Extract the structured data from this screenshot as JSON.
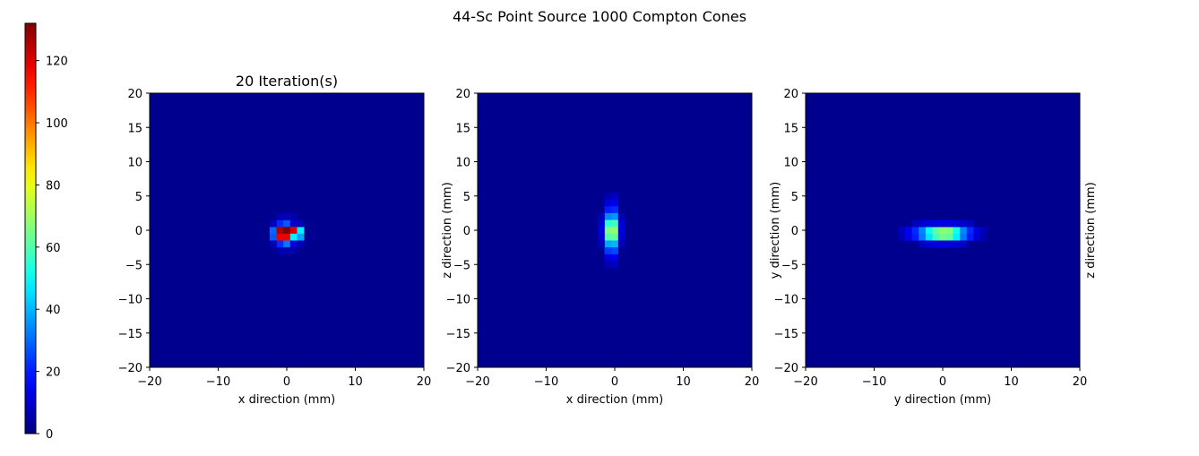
{
  "figure": {
    "title": "44-Sc Point Source 1000 Compton Cones"
  },
  "colorbar": {
    "colormap": "jet",
    "range": [
      0,
      132
    ],
    "ticks": [
      0,
      20,
      40,
      60,
      80,
      100,
      120
    ]
  },
  "chart_data": [
    {
      "type": "heatmap",
      "title": "20 Iteration(s)",
      "xlabel": "x direction (mm)",
      "ylabel": "",
      "xlim": [
        -20,
        20
      ],
      "ylim": [
        -20,
        20
      ],
      "xticks": [
        -20,
        -10,
        0,
        10,
        20
      ],
      "yticks": [
        -20,
        -15,
        -10,
        -5,
        0,
        5,
        10,
        15,
        20
      ],
      "cell_size_mm": 1,
      "background_value": 2,
      "cells": [
        {
          "x": -1,
          "y": 1,
          "v": 22
        },
        {
          "x": 0,
          "y": 1,
          "v": 28
        },
        {
          "x": 1,
          "y": 1,
          "v": 10
        },
        {
          "x": -2,
          "y": 0,
          "v": 30
        },
        {
          "x": -1,
          "y": 0,
          "v": 126
        },
        {
          "x": 0,
          "y": 0,
          "v": 132
        },
        {
          "x": 1,
          "y": 0,
          "v": 120
        },
        {
          "x": 2,
          "y": 0,
          "v": 48
        },
        {
          "x": -2,
          "y": -1,
          "v": 28
        },
        {
          "x": -1,
          "y": -1,
          "v": 118
        },
        {
          "x": 0,
          "y": -1,
          "v": 118
        },
        {
          "x": 1,
          "y": -1,
          "v": 48
        },
        {
          "x": 2,
          "y": -1,
          "v": 38
        },
        {
          "x": -1,
          "y": -2,
          "v": 22
        },
        {
          "x": 0,
          "y": -2,
          "v": 32
        },
        {
          "x": 1,
          "y": -2,
          "v": 12
        },
        {
          "x": -2,
          "y": 1,
          "v": 8
        },
        {
          "x": 2,
          "y": 1,
          "v": 8
        },
        {
          "x": -2,
          "y": -2,
          "v": 7
        },
        {
          "x": 2,
          "y": -2,
          "v": 7
        },
        {
          "x": -1,
          "y": 2,
          "v": 7
        },
        {
          "x": 0,
          "y": 2,
          "v": 7
        },
        {
          "x": 1,
          "y": 2,
          "v": 6
        },
        {
          "x": -1,
          "y": -3,
          "v": 6
        },
        {
          "x": 0,
          "y": -3,
          "v": 6
        },
        {
          "x": 1,
          "y": -3,
          "v": 5
        }
      ]
    },
    {
      "type": "heatmap",
      "title": "",
      "xlabel": "x direction (mm)",
      "ylabel": "z direction (mm)",
      "xlim": [
        -20,
        20
      ],
      "ylim": [
        -20,
        20
      ],
      "xticks": [
        -20,
        -10,
        0,
        10,
        20
      ],
      "yticks": [
        -20,
        -15,
        -10,
        -5,
        0,
        5,
        10,
        15,
        20
      ],
      "cell_size_mm": 1,
      "background_value": 2,
      "cells": [
        {
          "x": -1,
          "y": 5,
          "v": 6
        },
        {
          "x": 0,
          "y": 5,
          "v": 8
        },
        {
          "x": -1,
          "y": 4,
          "v": 12
        },
        {
          "x": 0,
          "y": 4,
          "v": 14
        },
        {
          "x": -1,
          "y": 3,
          "v": 20
        },
        {
          "x": 0,
          "y": 3,
          "v": 22
        },
        {
          "x": -1,
          "y": 2,
          "v": 34
        },
        {
          "x": 0,
          "y": 2,
          "v": 36
        },
        {
          "x": -1,
          "y": 1,
          "v": 55
        },
        {
          "x": 0,
          "y": 1,
          "v": 58
        },
        {
          "x": -1,
          "y": 0,
          "v": 66
        },
        {
          "x": 0,
          "y": 0,
          "v": 68
        },
        {
          "x": -1,
          "y": -1,
          "v": 60
        },
        {
          "x": 0,
          "y": -1,
          "v": 62
        },
        {
          "x": -1,
          "y": -2,
          "v": 38
        },
        {
          "x": 0,
          "y": -2,
          "v": 40
        },
        {
          "x": -1,
          "y": -3,
          "v": 24
        },
        {
          "x": 0,
          "y": -3,
          "v": 26
        },
        {
          "x": -1,
          "y": -4,
          "v": 12
        },
        {
          "x": 0,
          "y": -4,
          "v": 14
        },
        {
          "x": -1,
          "y": -5,
          "v": 7
        },
        {
          "x": 0,
          "y": -5,
          "v": 8
        },
        {
          "x": -2,
          "y": 1,
          "v": 10
        },
        {
          "x": 1,
          "y": 1,
          "v": 10
        },
        {
          "x": -2,
          "y": 0,
          "v": 12
        },
        {
          "x": 1,
          "y": 0,
          "v": 12
        },
        {
          "x": -2,
          "y": -1,
          "v": 10
        },
        {
          "x": 1,
          "y": -1,
          "v": 10
        },
        {
          "x": -2,
          "y": 2,
          "v": 7
        },
        {
          "x": 1,
          "y": 2,
          "v": 7
        },
        {
          "x": -2,
          "y": -2,
          "v": 7
        },
        {
          "x": 1,
          "y": -2,
          "v": 7
        }
      ]
    },
    {
      "type": "heatmap",
      "title": "",
      "xlabel": "y direction (mm)",
      "ylabel": "y direction (mm)",
      "right_label": "z direction (mm)",
      "xlim": [
        -20,
        20
      ],
      "ylim": [
        -20,
        20
      ],
      "xticks": [
        -20,
        -10,
        0,
        10,
        20
      ],
      "yticks": [
        -20,
        -15,
        -10,
        -5,
        0,
        5,
        10,
        15,
        20
      ],
      "cell_size_mm": 1,
      "background_value": 2,
      "cells": [
        {
          "x": -6,
          "y": 0,
          "v": 8
        },
        {
          "x": -5,
          "y": 0,
          "v": 14
        },
        {
          "x": -4,
          "y": 0,
          "v": 22
        },
        {
          "x": -3,
          "y": 0,
          "v": 34
        },
        {
          "x": -2,
          "y": 0,
          "v": 50
        },
        {
          "x": -1,
          "y": 0,
          "v": 62
        },
        {
          "x": 0,
          "y": 0,
          "v": 68
        },
        {
          "x": 1,
          "y": 0,
          "v": 66
        },
        {
          "x": 2,
          "y": 0,
          "v": 52
        },
        {
          "x": 3,
          "y": 0,
          "v": 34
        },
        {
          "x": 4,
          "y": 0,
          "v": 22
        },
        {
          "x": 5,
          "y": 0,
          "v": 12
        },
        {
          "x": 6,
          "y": 0,
          "v": 7
        },
        {
          "x": -6,
          "y": -1,
          "v": 7
        },
        {
          "x": -5,
          "y": -1,
          "v": 13
        },
        {
          "x": -4,
          "y": -1,
          "v": 20
        },
        {
          "x": -3,
          "y": -1,
          "v": 32
        },
        {
          "x": -2,
          "y": -1,
          "v": 46
        },
        {
          "x": -1,
          "y": -1,
          "v": 58
        },
        {
          "x": 0,
          "y": -1,
          "v": 64
        },
        {
          "x": 1,
          "y": -1,
          "v": 62
        },
        {
          "x": 2,
          "y": -1,
          "v": 48
        },
        {
          "x": 3,
          "y": -1,
          "v": 32
        },
        {
          "x": 4,
          "y": -1,
          "v": 20
        },
        {
          "x": 5,
          "y": -1,
          "v": 11
        },
        {
          "x": 6,
          "y": -1,
          "v": 6
        },
        {
          "x": -4,
          "y": 1,
          "v": 8
        },
        {
          "x": -3,
          "y": 1,
          "v": 10
        },
        {
          "x": -2,
          "y": 1,
          "v": 12
        },
        {
          "x": -1,
          "y": 1,
          "v": 13
        },
        {
          "x": 0,
          "y": 1,
          "v": 13
        },
        {
          "x": 1,
          "y": 1,
          "v": 13
        },
        {
          "x": 2,
          "y": 1,
          "v": 12
        },
        {
          "x": 3,
          "y": 1,
          "v": 10
        },
        {
          "x": 4,
          "y": 1,
          "v": 8
        },
        {
          "x": -3,
          "y": -2,
          "v": 9
        },
        {
          "x": -2,
          "y": -2,
          "v": 11
        },
        {
          "x": -1,
          "y": -2,
          "v": 12
        },
        {
          "x": 0,
          "y": -2,
          "v": 12
        },
        {
          "x": 1,
          "y": -2,
          "v": 12
        },
        {
          "x": 2,
          "y": -2,
          "v": 11
        },
        {
          "x": 3,
          "y": -2,
          "v": 9
        }
      ]
    }
  ]
}
